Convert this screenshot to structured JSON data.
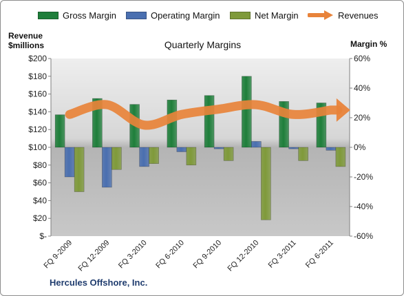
{
  "chart_data": {
    "type": "bar",
    "title": "Quarterly Margins",
    "company": "Hercules Offshore, Inc.",
    "categories": [
      "FQ 9-2009",
      "FQ 12-2009",
      "FQ 3-2010",
      "FQ 6-2010",
      "FQ 9-2010",
      "FQ 12-2010",
      "FQ 3-2011",
      "FQ 6-2011"
    ],
    "left_axis": {
      "label_line1": "Revenue",
      "label_line2": "$millions",
      "min": 0,
      "max": 200,
      "step": 20,
      "ticks": [
        "$-",
        "$20",
        "$40",
        "$60",
        "$80",
        "$100",
        "$120",
        "$140",
        "$160",
        "$180",
        "$200"
      ]
    },
    "right_axis": {
      "label": "Margin %",
      "min": -60,
      "max": 60,
      "step": 20,
      "ticks": [
        "-60%",
        "-40%",
        "-20%",
        "0%",
        "20%",
        "40%",
        "60%"
      ]
    },
    "series": [
      {
        "name": "Gross Margin",
        "kind": "bar",
        "axis": "right",
        "color": "#1e7e3a",
        "values": [
          22,
          33,
          29,
          32,
          35,
          48,
          31,
          30
        ]
      },
      {
        "name": "Operating Margin",
        "kind": "bar",
        "axis": "right",
        "color": "#4a6fb0",
        "values": [
          -20,
          -27,
          -13,
          -3,
          -1,
          4,
          -1,
          -2
        ]
      },
      {
        "name": "Net Margin",
        "kind": "bar",
        "axis": "right",
        "color": "#7f9a3a",
        "values": [
          -30,
          -15,
          -11,
          -12,
          -9,
          -49,
          -9,
          -13
        ]
      },
      {
        "name": "Revenues",
        "kind": "line",
        "axis": "left",
        "color": "#e8833a",
        "values": [
          137,
          148,
          125,
          137,
          143,
          148,
          137,
          142
        ]
      }
    ],
    "legend_position": "top",
    "grid": false
  }
}
